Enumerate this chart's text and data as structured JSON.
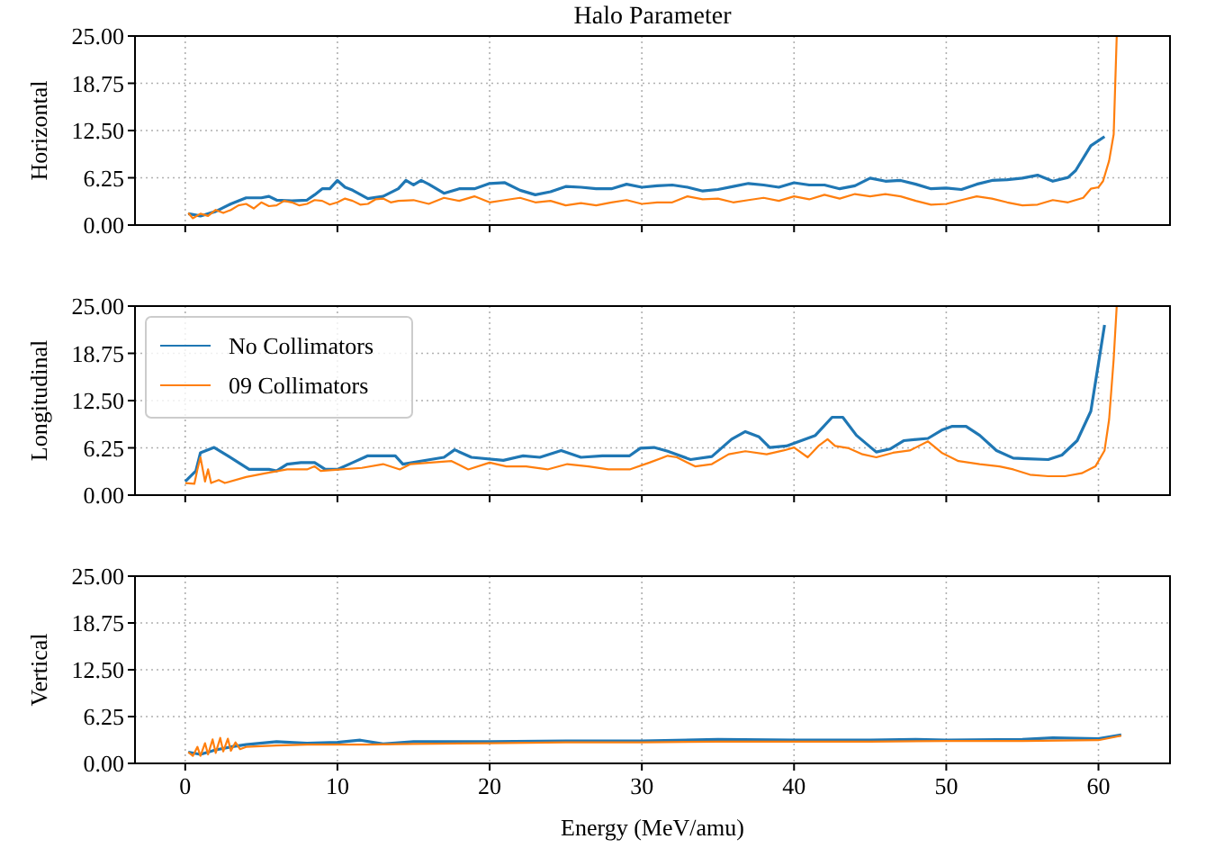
{
  "chart_data": [
    {
      "type": "line",
      "title": "Halo Parameter",
      "ylabel": "Horizontal",
      "xlim": [
        -3.3,
        64.7
      ],
      "ylim": [
        0,
        25
      ],
      "yticks": [
        {
          "value": 0,
          "label": "0.00"
        },
        {
          "value": 6.25,
          "label": "6.25"
        },
        {
          "value": 12.5,
          "label": "12.50"
        },
        {
          "value": 18.75,
          "label": "18.75"
        },
        {
          "value": 25,
          "label": "25.00"
        }
      ],
      "xticks": [
        0,
        10,
        20,
        30,
        40,
        50,
        60
      ],
      "tick_labels": "y",
      "grid": true,
      "line_style": "solid",
      "series": [
        {
          "color": "#1f77b4",
          "x": [
            0.2,
            1,
            2,
            3,
            4,
            5,
            5.5,
            6,
            7,
            8,
            8.5,
            9,
            9.5,
            10,
            10.5,
            11,
            12,
            13,
            14,
            14.5,
            15,
            15.5,
            16,
            17,
            18,
            19,
            20,
            21,
            22,
            23,
            24,
            25,
            26,
            27,
            28,
            29,
            30,
            31,
            32,
            33,
            34,
            35,
            36,
            37,
            38,
            39,
            40,
            41,
            42,
            43,
            44,
            45,
            46,
            47,
            48,
            49,
            50,
            51,
            52,
            53,
            54,
            55,
            56,
            57,
            58,
            58.5,
            59.5,
            60.4
          ],
          "values": [
            1.5,
            1.2,
            1.8,
            2.8,
            3.6,
            3.6,
            3.8,
            3.3,
            3.2,
            3.3,
            4.0,
            4.8,
            4.8,
            5.9,
            5.0,
            4.6,
            3.5,
            3.8,
            4.8,
            5.9,
            5.3,
            5.9,
            5.4,
            4.2,
            4.8,
            4.8,
            5.5,
            5.6,
            4.6,
            4.0,
            4.4,
            5.1,
            5.0,
            4.8,
            4.8,
            5.4,
            5.0,
            5.2,
            5.3,
            5.0,
            4.5,
            4.7,
            5.1,
            5.5,
            5.3,
            5.0,
            5.6,
            5.3,
            5.3,
            4.8,
            5.2,
            6.2,
            5.8,
            5.9,
            5.4,
            4.8,
            4.9,
            4.7,
            5.4,
            5.9,
            6.0,
            6.2,
            6.6,
            5.8,
            6.3,
            7.2,
            10.5,
            11.7
          ]
        },
        {
          "color": "#ff7f0e",
          "x": [
            0.2,
            0.5,
            1,
            1.5,
            2,
            2.5,
            3,
            3.5,
            4,
            4.5,
            5,
            5.5,
            6,
            6.5,
            7,
            7.5,
            8,
            8.5,
            9,
            9.5,
            10,
            10.5,
            11,
            11.5,
            12,
            12.5,
            13,
            13.5,
            14,
            15,
            16,
            17,
            18,
            19,
            20,
            21,
            22,
            23,
            24,
            25,
            26,
            27,
            28,
            29,
            30,
            31,
            32,
            33,
            34,
            35,
            36,
            37,
            38,
            39,
            40,
            41,
            42,
            43,
            44,
            45,
            46,
            47,
            48,
            49,
            50,
            51,
            52,
            53,
            54,
            55,
            56,
            57,
            58,
            59,
            59.5,
            60,
            60.3,
            60.7,
            61,
            61.2
          ],
          "values": [
            1.6,
            0.9,
            1.5,
            1.2,
            2.0,
            1.6,
            2.0,
            2.6,
            2.8,
            2.2,
            3.0,
            2.5,
            2.6,
            3.2,
            3.0,
            2.6,
            2.8,
            3.3,
            3.2,
            2.7,
            3.0,
            3.5,
            3.2,
            2.7,
            2.8,
            3.4,
            3.5,
            3.0,
            3.2,
            3.3,
            2.8,
            3.6,
            3.2,
            3.8,
            3.0,
            3.3,
            3.6,
            3.0,
            3.2,
            2.6,
            2.9,
            2.6,
            3.0,
            3.3,
            2.8,
            3.0,
            3.0,
            3.8,
            3.4,
            3.5,
            3.0,
            3.3,
            3.6,
            3.2,
            3.8,
            3.4,
            4.0,
            3.5,
            4.1,
            3.8,
            4.1,
            3.8,
            3.2,
            2.7,
            2.8,
            3.3,
            3.8,
            3.5,
            3.0,
            2.6,
            2.7,
            3.3,
            3.0,
            3.6,
            4.8,
            5.0,
            5.8,
            8.5,
            12,
            25
          ]
        }
      ]
    },
    {
      "type": "line",
      "ylabel": "Longitudinal",
      "xlim": [
        -3.3,
        64.7
      ],
      "ylim": [
        0,
        25
      ],
      "yticks": [
        {
          "value": 0,
          "label": "0.00"
        },
        {
          "value": 6.25,
          "label": "6.25"
        },
        {
          "value": 12.5,
          "label": "12.50"
        },
        {
          "value": 18.75,
          "label": "18.75"
        },
        {
          "value": 25,
          "label": "25.00"
        }
      ],
      "xticks": [
        0,
        10,
        20,
        30,
        40,
        50,
        60
      ],
      "tick_labels": "y",
      "grid": true,
      "legend": "top left",
      "line_style": "solid",
      "series": [
        {
          "name": "No Collimators",
          "color": "#1f77b4",
          "x": [
            0,
            0.7,
            1.0,
            1.9,
            2.8,
            3.5,
            4.2,
            5.5,
            6,
            6.7,
            7.6,
            8.5,
            9.2,
            10,
            11,
            12,
            13.4,
            13.8,
            14.3,
            16.1,
            17,
            17.7,
            18.8,
            20.9,
            22.2,
            23.3,
            24.7,
            26,
            27.4,
            29.2,
            29.9,
            30.8,
            31.7,
            33.2,
            34.6,
            35.9,
            36.8,
            37.7,
            38.4,
            39.5,
            41.4,
            42.5,
            43.2,
            44.1,
            45.4,
            46.3,
            47.2,
            48.8,
            49.7,
            50.4,
            51.3,
            52.2,
            53.3,
            54.4,
            55.3,
            56.7,
            57.6,
            58.6,
            59.5,
            60,
            60.4
          ],
          "values": [
            1.8,
            3.2,
            5.6,
            6.3,
            5.2,
            4.3,
            3.4,
            3.4,
            3.2,
            4.1,
            4.3,
            4.3,
            3.4,
            3.4,
            4.3,
            5.2,
            5.2,
            5.2,
            4.1,
            4.7,
            5.0,
            6.0,
            5.0,
            4.6,
            5.2,
            5.0,
            5.9,
            5.0,
            5.2,
            5.2,
            6.2,
            6.3,
            5.8,
            4.7,
            5.1,
            7.4,
            8.4,
            7.7,
            6.3,
            6.5,
            7.9,
            10.3,
            10.3,
            7.9,
            5.7,
            6.1,
            7.2,
            7.5,
            8.6,
            9.1,
            9.1,
            7.9,
            5.9,
            4.9,
            4.8,
            4.7,
            5.3,
            7.2,
            11.1,
            17.4,
            22.5
          ]
        },
        {
          "name": "09 Collimators",
          "color": "#ff7f0e",
          "x": [
            0,
            0.6,
            0.8,
            1.0,
            1.3,
            1.5,
            1.7,
            2.2,
            2.6,
            4,
            5.3,
            6.7,
            8,
            8.5,
            8.9,
            10.3,
            11.6,
            13,
            14.1,
            14.8,
            16.1,
            17.5,
            18.6,
            20,
            21.1,
            22.4,
            23.8,
            25.1,
            26.5,
            27.8,
            29.2,
            30.5,
            31.7,
            32.3,
            33.5,
            34.6,
            35.7,
            36.8,
            38.2,
            39.3,
            40,
            40.9,
            41.6,
            42.2,
            42.7,
            43.6,
            44.5,
            45.4,
            46.5,
            47.6,
            48.8,
            49.7,
            50.8,
            52.2,
            53.5,
            54.4,
            55.5,
            56.7,
            57.8,
            58.9,
            59.8,
            60.4,
            60.7,
            61,
            61.2
          ],
          "values": [
            1.6,
            1.5,
            3.4,
            5.0,
            1.8,
            3.4,
            1.6,
            2.0,
            1.6,
            2.4,
            2.9,
            3.4,
            3.4,
            3.8,
            3.2,
            3.4,
            3.6,
            4.1,
            3.4,
            4.1,
            4.3,
            4.5,
            3.4,
            4.3,
            3.8,
            3.8,
            3.4,
            4.1,
            3.8,
            3.4,
            3.4,
            4.3,
            5.2,
            5.0,
            3.8,
            4.1,
            5.4,
            5.8,
            5.4,
            5.9,
            6.3,
            5.0,
            6.5,
            7.4,
            6.5,
            6.2,
            5.4,
            5.0,
            5.6,
            5.9,
            7.1,
            5.6,
            4.5,
            4.1,
            3.8,
            3.4,
            2.7,
            2.5,
            2.5,
            2.9,
            3.8,
            5.9,
            10,
            18,
            25
          ]
        }
      ]
    },
    {
      "type": "line",
      "ylabel": "Vertical",
      "xlabel": "Energy (MeV/amu)",
      "xlim": [
        -3.3,
        64.7
      ],
      "ylim": [
        0,
        25
      ],
      "yticks": [
        {
          "value": 0,
          "label": "0.00"
        },
        {
          "value": 6.25,
          "label": "6.25"
        },
        {
          "value": 12.5,
          "label": "12.50"
        },
        {
          "value": 18.75,
          "label": "18.75"
        },
        {
          "value": 25,
          "label": "25.00"
        }
      ],
      "xticks": [
        0,
        10,
        20,
        30,
        40,
        50,
        60
      ],
      "grid": true,
      "line_style": "solid",
      "series": [
        {
          "color": "#1f77b4",
          "x": [
            0.2,
            1,
            2,
            3,
            4,
            6,
            8,
            10,
            11.5,
            13,
            15,
            20,
            25,
            30,
            35,
            40,
            45,
            48,
            50,
            55,
            57,
            60,
            61.5
          ],
          "values": [
            1.5,
            1.2,
            1.8,
            2.2,
            2.5,
            2.9,
            2.7,
            2.8,
            3.1,
            2.6,
            2.9,
            2.9,
            3.0,
            3.0,
            3.2,
            3.1,
            3.1,
            3.2,
            3.1,
            3.2,
            3.4,
            3.3,
            3.8
          ]
        },
        {
          "color": "#ff7f0e",
          "x": [
            0.2,
            0.5,
            0.8,
            1.0,
            1.3,
            1.5,
            1.8,
            2.0,
            2.3,
            2.5,
            2.8,
            3.0,
            3.3,
            3.6,
            4,
            6,
            8,
            10,
            12,
            15,
            20,
            25,
            30,
            35,
            40,
            45,
            50,
            55,
            60,
            61.5
          ],
          "values": [
            1.5,
            1.0,
            2.2,
            1.0,
            2.7,
            1.2,
            3.2,
            1.4,
            3.4,
            1.6,
            3.3,
            1.7,
            2.8,
            1.9,
            2.2,
            2.4,
            2.5,
            2.5,
            2.5,
            2.6,
            2.7,
            2.8,
            2.8,
            2.9,
            2.9,
            2.9,
            3.0,
            3.0,
            3.1,
            3.7
          ]
        }
      ]
    }
  ]
}
